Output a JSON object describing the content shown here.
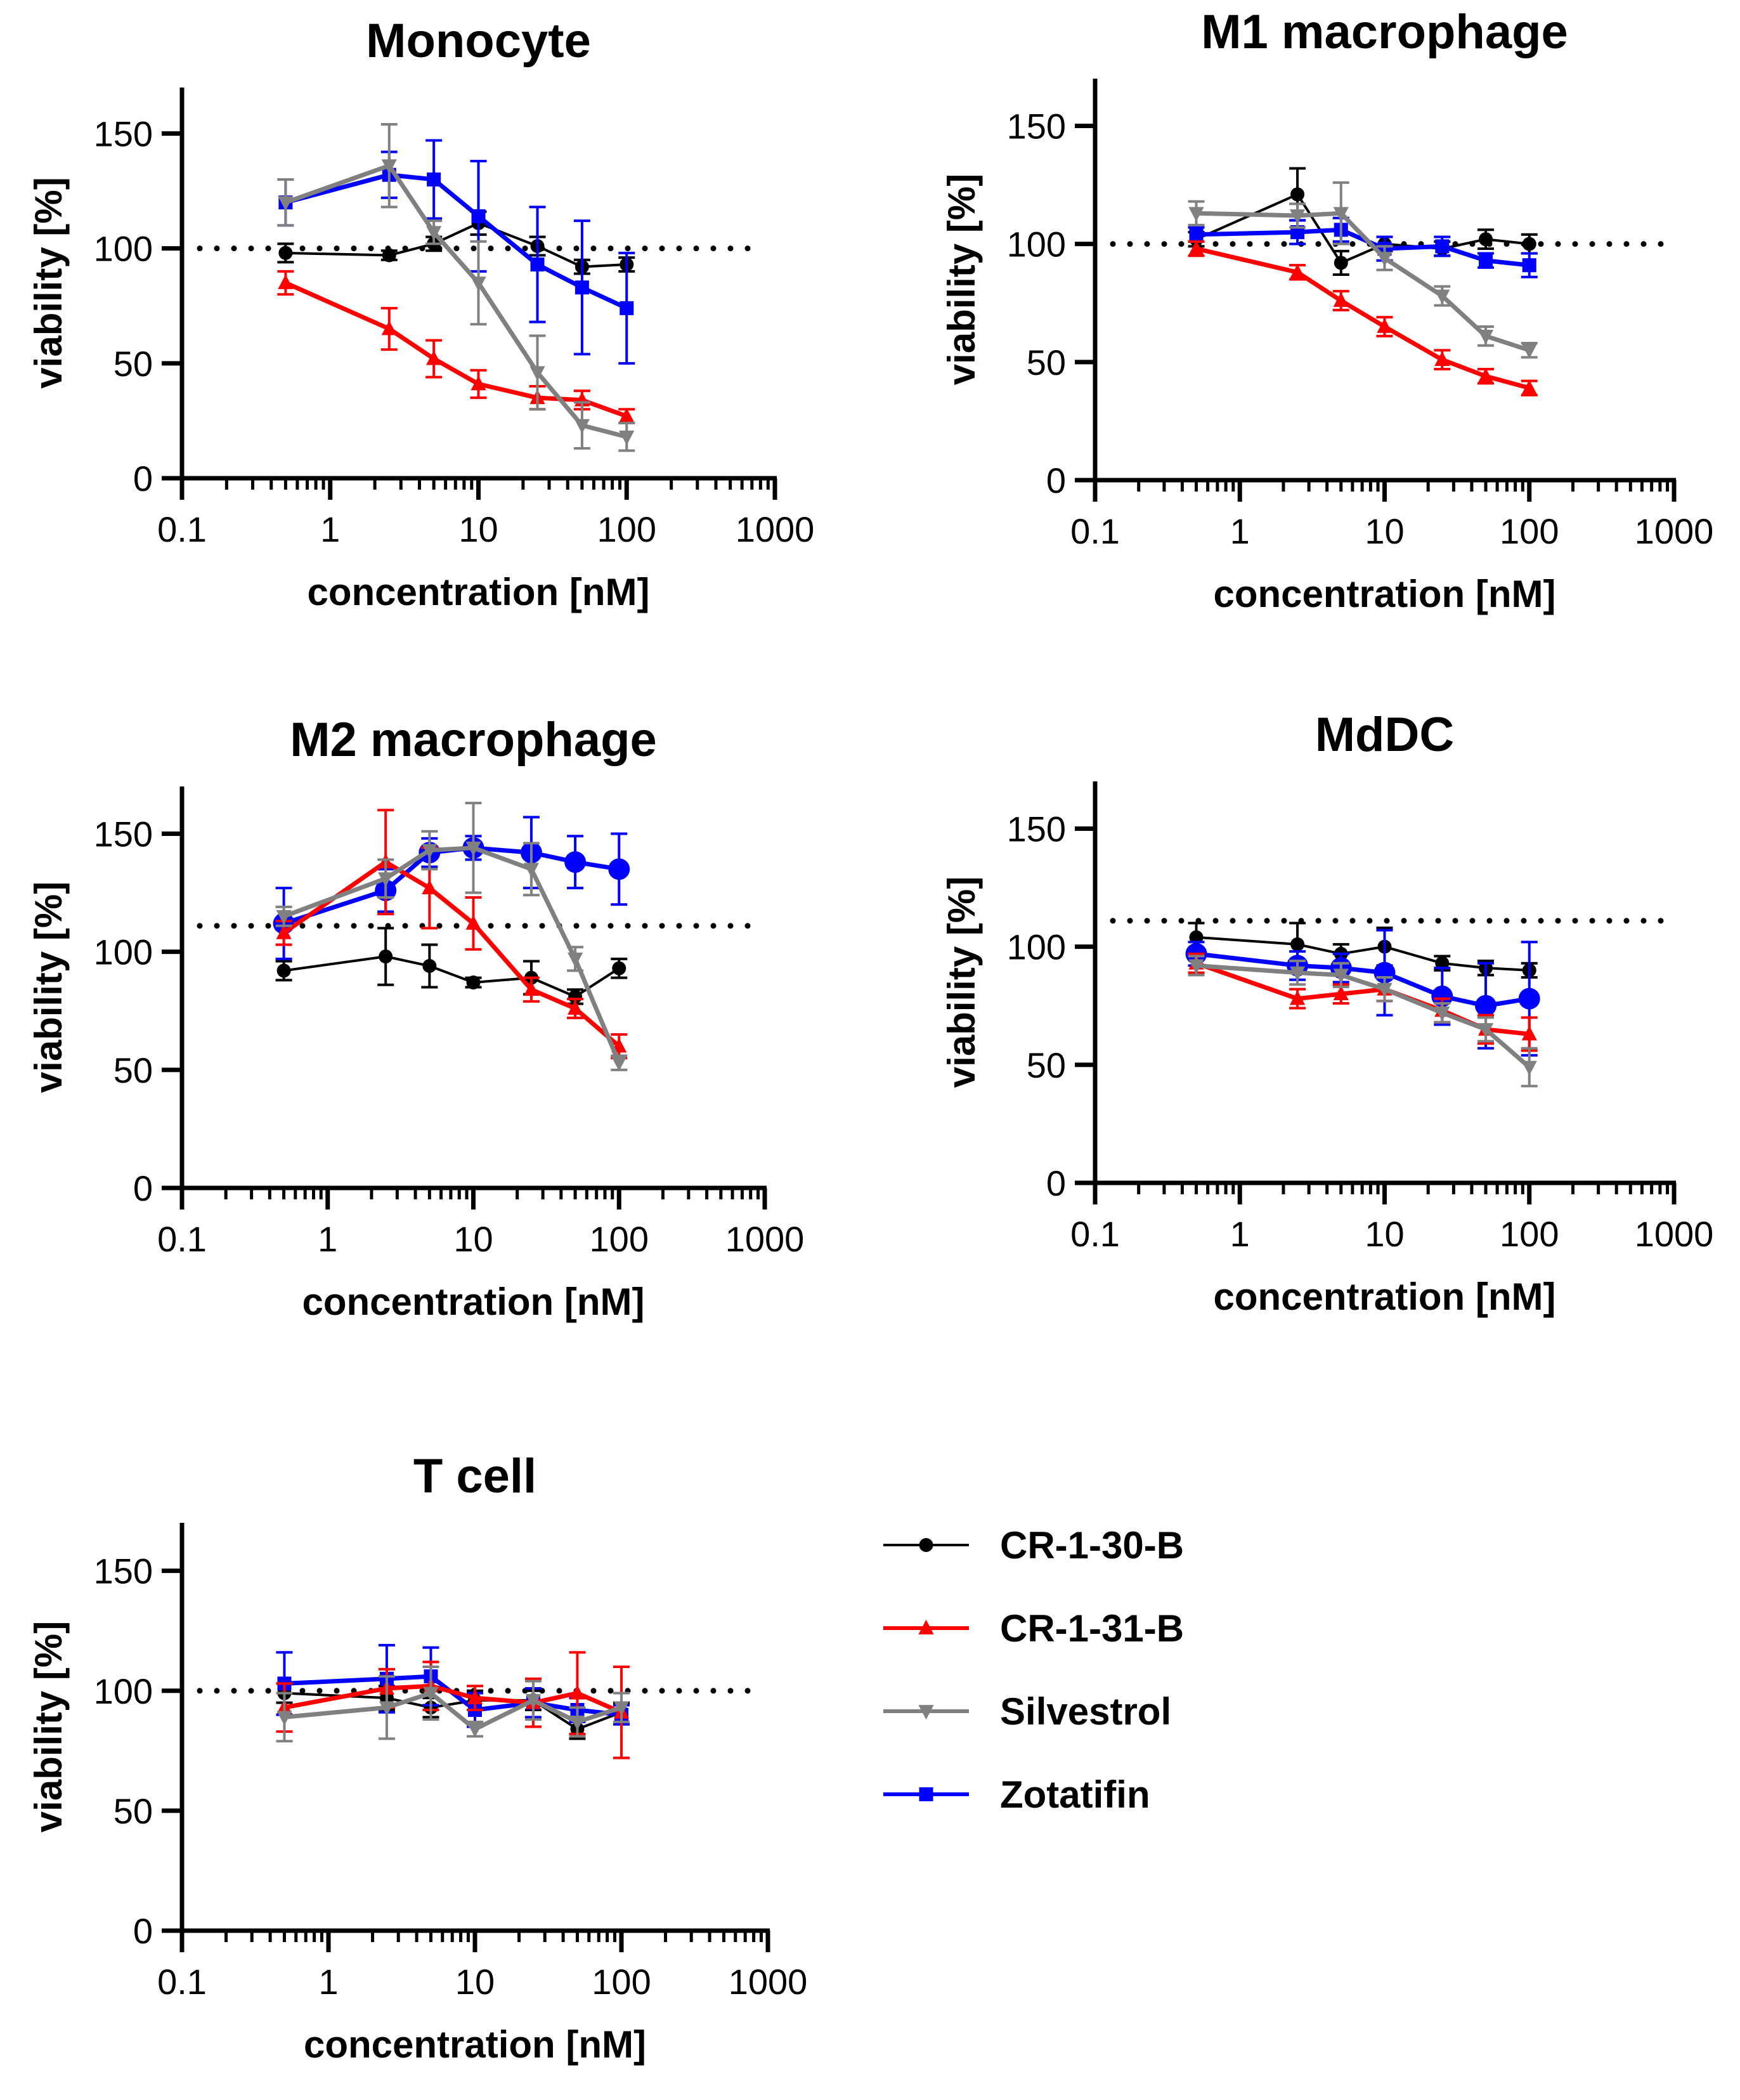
{
  "legend": [
    {
      "name": "CR-1-30-B",
      "color": "#000000",
      "marker": "circle"
    },
    {
      "name": "CR-1-31-B",
      "color": "#ff0000",
      "marker": "triangle-up"
    },
    {
      "name": "Silvestrol",
      "color": "#808080",
      "marker": "triangle-down"
    },
    {
      "name": "Zotatifin",
      "color": "#0000ff",
      "marker": "square"
    }
  ],
  "chart_data": [
    {
      "type": "line",
      "title": "Monocyte",
      "xlabel": "concentration [nM]",
      "ylabel": "viability [%]",
      "xscale": "log",
      "xlim": [
        0.1,
        1000
      ],
      "ylim": [
        0,
        170
      ],
      "xticks": [
        0.1,
        1,
        10,
        100,
        1000
      ],
      "xtick_labels": [
        "0.1",
        "1",
        "10",
        "100",
        "1000"
      ],
      "yticks": [
        0,
        50,
        100,
        150
      ],
      "ytick_labels": [
        "0",
        "50",
        "100",
        "150"
      ],
      "reference_line": 100,
      "x": [
        0.5,
        2.5,
        5,
        10,
        25,
        50,
        100
      ],
      "series": [
        {
          "name": "CR-1-30-B",
          "values": [
            98,
            97,
            102,
            111,
            101,
            92,
            93
          ],
          "errors": [
            4,
            2,
            3,
            5,
            4,
            3,
            3
          ]
        },
        {
          "name": "CR-1-31-B",
          "values": [
            85,
            65,
            52,
            41,
            35,
            34,
            27
          ],
          "errors": [
            5,
            9,
            8,
            6,
            5,
            4,
            3
          ]
        },
        {
          "name": "Silvestrol",
          "values": [
            120,
            136,
            107,
            85,
            46,
            23,
            18
          ],
          "errors": [
            10,
            18,
            5,
            18,
            16,
            10,
            6
          ]
        },
        {
          "name": "Zotatifin",
          "values": [
            120,
            132,
            130,
            114,
            93,
            83,
            74
          ],
          "errors": [
            10,
            10,
            17,
            24,
            25,
            29,
            24
          ]
        }
      ]
    },
    {
      "type": "line",
      "title": "M1 macrophage",
      "xlabel": "concentration [nM]",
      "ylabel": "viability [%]",
      "xscale": "log",
      "xlim": [
        0.1,
        1000
      ],
      "ylim": [
        0,
        170
      ],
      "xticks": [
        0.1,
        1,
        10,
        100,
        1000
      ],
      "xtick_labels": [
        "0.1",
        "1",
        "10",
        "100",
        "1000"
      ],
      "yticks": [
        0,
        50,
        100,
        150
      ],
      "ytick_labels": [
        "0",
        "50",
        "100",
        "150"
      ],
      "reference_line": 100,
      "x": [
        0.5,
        2.5,
        5,
        10,
        25,
        50,
        100
      ],
      "series": [
        {
          "name": "CR-1-30-B",
          "values": [
            102,
            121,
            92,
            100,
            98,
            102,
            100
          ],
          "errors": [
            3,
            11,
            5,
            3,
            3,
            4,
            4
          ]
        },
        {
          "name": "CR-1-31-B",
          "values": [
            98,
            88,
            76,
            65,
            51,
            44,
            39
          ],
          "errors": [
            3,
            3,
            4,
            4,
            4,
            3,
            3
          ]
        },
        {
          "name": "Silvestrol",
          "values": [
            113,
            112,
            113,
            94,
            78,
            61,
            55
          ],
          "errors": [
            5,
            5,
            13,
            5,
            4,
            4,
            3
          ]
        },
        {
          "name": "Zotatifin",
          "values": [
            104,
            105,
            106,
            98,
            99,
            93,
            91
          ],
          "errors": [
            3,
            5,
            5,
            5,
            4,
            3,
            5
          ]
        }
      ]
    },
    {
      "type": "line",
      "title": "M2 macrophage",
      "xlabel": "concentration [nM]",
      "ylabel": "viability [%]",
      "xscale": "log",
      "xlim": [
        0.1,
        1000
      ],
      "ylim": [
        0,
        170
      ],
      "xticks": [
        0.1,
        1,
        10,
        100,
        1000
      ],
      "xtick_labels": [
        "0.1",
        "1",
        "10",
        "100",
        "1000"
      ],
      "yticks": [
        0,
        50,
        100,
        150
      ],
      "ytick_labels": [
        "0",
        "50",
        "100",
        "150"
      ],
      "reference_line": 111,
      "x": [
        0.5,
        2.5,
        5,
        10,
        25,
        50,
        100
      ],
      "series": [
        {
          "name": "CR-1-30-B",
          "values": [
            92,
            98,
            94,
            87,
            89,
            81,
            93
          ],
          "errors": [
            4,
            12,
            9,
            2,
            7,
            3,
            4
          ]
        },
        {
          "name": "CR-1-31-B",
          "values": [
            108,
            138,
            127,
            112,
            84,
            76,
            60
          ],
          "errors": [
            5,
            22,
            17,
            11,
            5,
            4,
            5
          ]
        },
        {
          "name": "Silvestrol",
          "values": [
            115,
            131,
            143,
            144,
            135,
            97,
            53
          ],
          "errors": [
            4,
            8,
            8,
            19,
            11,
            5,
            3
          ]
        },
        {
          "name": "Zotatifin",
          "values": [
            112,
            126,
            142,
            144,
            142,
            138,
            135
          ],
          "errors": [
            15,
            9,
            6,
            5,
            15,
            11,
            15
          ]
        }
      ]
    },
    {
      "type": "line",
      "title": "MdDC",
      "xlabel": "concentration [nM]",
      "ylabel": "viability [%]",
      "xscale": "log",
      "xlim": [
        0.1,
        1000
      ],
      "ylim": [
        0,
        170
      ],
      "xticks": [
        0.1,
        1,
        10,
        100,
        1000
      ],
      "xtick_labels": [
        "0.1",
        "1",
        "10",
        "100",
        "1000"
      ],
      "yticks": [
        0,
        50,
        100,
        150
      ],
      "ytick_labels": [
        "0",
        "50",
        "100",
        "150"
      ],
      "reference_line": 111,
      "x": [
        0.5,
        2.5,
        5,
        10,
        25,
        50,
        100
      ],
      "series": [
        {
          "name": "CR-1-30-B",
          "values": [
            104,
            101,
            97,
            100,
            93,
            91,
            90
          ],
          "errors": [
            6,
            9,
            4,
            8,
            3,
            3,
            3
          ]
        },
        {
          "name": "CR-1-31-B",
          "values": [
            93,
            78,
            80,
            82,
            73,
            65,
            63
          ],
          "errors": [
            4,
            4,
            4,
            5,
            5,
            6,
            7
          ]
        },
        {
          "name": "Silvestrol",
          "values": [
            92,
            89,
            88,
            82,
            72,
            65,
            49
          ],
          "errors": [
            4,
            5,
            5,
            5,
            4,
            5,
            8
          ]
        },
        {
          "name": "Zotatifin",
          "values": [
            97,
            92,
            91,
            89,
            79,
            75,
            78
          ],
          "errors": [
            5,
            6,
            6,
            18,
            12,
            18,
            24
          ]
        }
      ]
    },
    {
      "type": "line",
      "title": "T cell",
      "xlabel": "concentration [nM]",
      "ylabel": "viability [%]",
      "xscale": "log",
      "xlim": [
        0.1,
        1000
      ],
      "ylim": [
        0,
        170
      ],
      "xticks": [
        0.1,
        1,
        10,
        100,
        1000
      ],
      "xtick_labels": [
        "0.1",
        "1",
        "10",
        "100",
        "1000"
      ],
      "yticks": [
        0,
        50,
        100,
        150
      ],
      "ytick_labels": [
        "0",
        "50",
        "100",
        "150"
      ],
      "reference_line": 100,
      "x": [
        0.5,
        2.5,
        5,
        10,
        25,
        50,
        100
      ],
      "series": [
        {
          "name": "CR-1-30-B",
          "values": [
            99,
            97,
            93,
            96,
            96,
            84,
            91
          ],
          "errors": [
            4,
            5,
            4,
            4,
            4,
            4,
            4
          ]
        },
        {
          "name": "CR-1-31-B",
          "values": [
            93,
            101,
            102,
            97,
            95,
            99,
            91
          ],
          "errors": [
            10,
            8,
            10,
            5,
            10,
            17,
            19
          ]
        },
        {
          "name": "Silvestrol",
          "values": [
            89,
            93,
            99,
            84,
            96,
            87,
            93
          ],
          "errors": [
            10,
            13,
            11,
            3,
            8,
            6,
            6
          ]
        },
        {
          "name": "Zotatifin",
          "values": [
            103,
            105,
            106,
            92,
            95,
            92,
            90
          ],
          "errors": [
            13,
            14,
            12,
            7,
            6,
            5,
            4
          ]
        }
      ]
    }
  ]
}
